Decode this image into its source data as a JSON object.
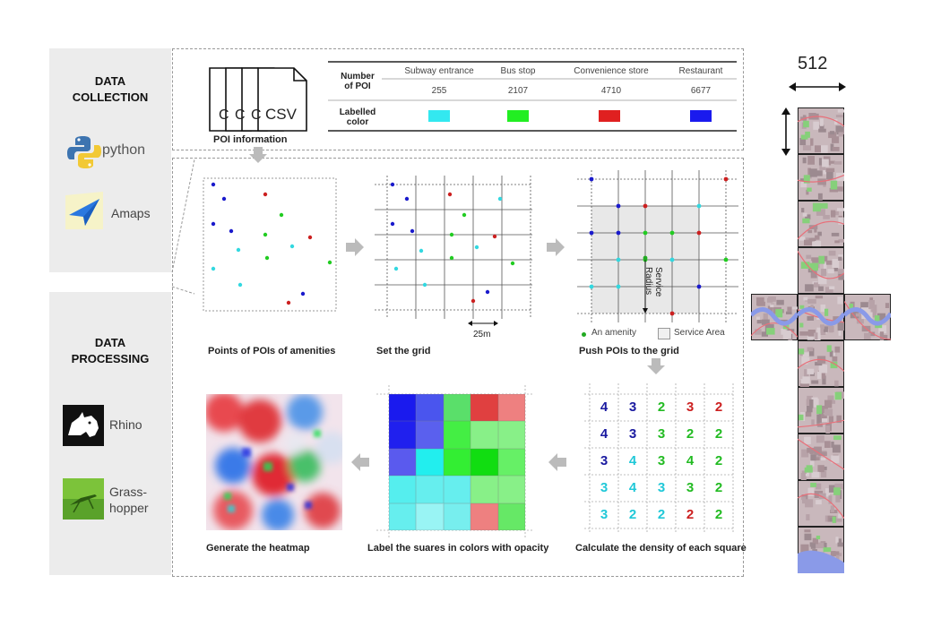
{
  "data_collection": {
    "title": "DATA\nCOLLECTION",
    "tools": [
      {
        "label": "python",
        "icon": "python-icon"
      },
      {
        "label": "Amaps",
        "icon": "amaps-icon"
      }
    ]
  },
  "data_processing": {
    "title": "DATA\nPROCESSING",
    "tools": [
      {
        "label": "Rhino",
        "icon": "rhino-icon"
      },
      {
        "label": "Grass-\nhopper",
        "icon": "grasshopper-icon"
      }
    ]
  },
  "files": {
    "csv_label": "CSV",
    "stack_letters": [
      "C",
      "C",
      "C"
    ],
    "caption": "POI information"
  },
  "poi_table": {
    "row1_header": "Number\nof POI",
    "row2_header": "Labelled\ncolor",
    "columns": [
      "Subway entrance",
      "Bus stop",
      "Convenience store",
      "Restaurant"
    ],
    "counts": [
      "255",
      "2107",
      "4710",
      "6677"
    ],
    "colors": [
      "#33e8f0",
      "#22ee22",
      "#e02020",
      "#1a1aee"
    ]
  },
  "steps": {
    "step1": "Points of POIs of amenities",
    "step2": "Set the grid",
    "step3": "Push POIs to the grid",
    "step4": "Calculate the density of each square",
    "step5": "Label the suares in colors with opacity",
    "step6": "Generate the heatmap"
  },
  "grid_scale_label": "25m",
  "service_radius_label": "Service\nRadius",
  "legend": {
    "amenity": "An amenity",
    "service_area": "Service Area"
  },
  "density_grid": [
    [
      {
        "v": "4",
        "c": "#1a1aa0"
      },
      {
        "v": "3",
        "c": "#1a1aa0"
      },
      {
        "v": "2",
        "c": "#22bb22"
      },
      {
        "v": "3",
        "c": "#cc2020"
      },
      {
        "v": "2",
        "c": "#cc2020"
      }
    ],
    [
      {
        "v": "4",
        "c": "#1a1aa0"
      },
      {
        "v": "3",
        "c": "#1a1aa0"
      },
      {
        "v": "3",
        "c": "#22bb22"
      },
      {
        "v": "2",
        "c": "#22bb22"
      },
      {
        "v": "2",
        "c": "#22bb22"
      }
    ],
    [
      {
        "v": "3",
        "c": "#1a1aa0"
      },
      {
        "v": "4",
        "c": "#20c8d8"
      },
      {
        "v": "3",
        "c": "#22bb22"
      },
      {
        "v": "4",
        "c": "#22bb22"
      },
      {
        "v": "2",
        "c": "#22bb22"
      }
    ],
    [
      {
        "v": "3",
        "c": "#20c8d8"
      },
      {
        "v": "4",
        "c": "#20c8d8"
      },
      {
        "v": "3",
        "c": "#20c8d8"
      },
      {
        "v": "3",
        "c": "#22bb22"
      },
      {
        "v": "2",
        "c": "#22bb22"
      }
    ],
    [
      {
        "v": "3",
        "c": "#20c8d8"
      },
      {
        "v": "2",
        "c": "#20c8d8"
      },
      {
        "v": "2",
        "c": "#20c8d8"
      },
      {
        "v": "2",
        "c": "#cc2020"
      },
      {
        "v": "2",
        "c": "#22bb22"
      }
    ]
  ],
  "color_grid": [
    [
      "#1a1aee",
      "#4a55ee",
      "#5adf6a",
      "#e04040",
      "#ee8080"
    ],
    [
      "#2020ee",
      "#5a60ee",
      "#44ee44",
      "#88f088",
      "#88f088"
    ],
    [
      "#5a5aee",
      "#22eeee",
      "#33ee33",
      "#11dd11",
      "#66f066"
    ],
    [
      "#55eeee",
      "#66eeee",
      "#66eeee",
      "#88f088",
      "#88f088"
    ],
    [
      "#66eeee",
      "#99f4f4",
      "#77eeee",
      "#ee8080",
      "#66e866"
    ]
  ],
  "cube_map": {
    "size_label": "512"
  }
}
